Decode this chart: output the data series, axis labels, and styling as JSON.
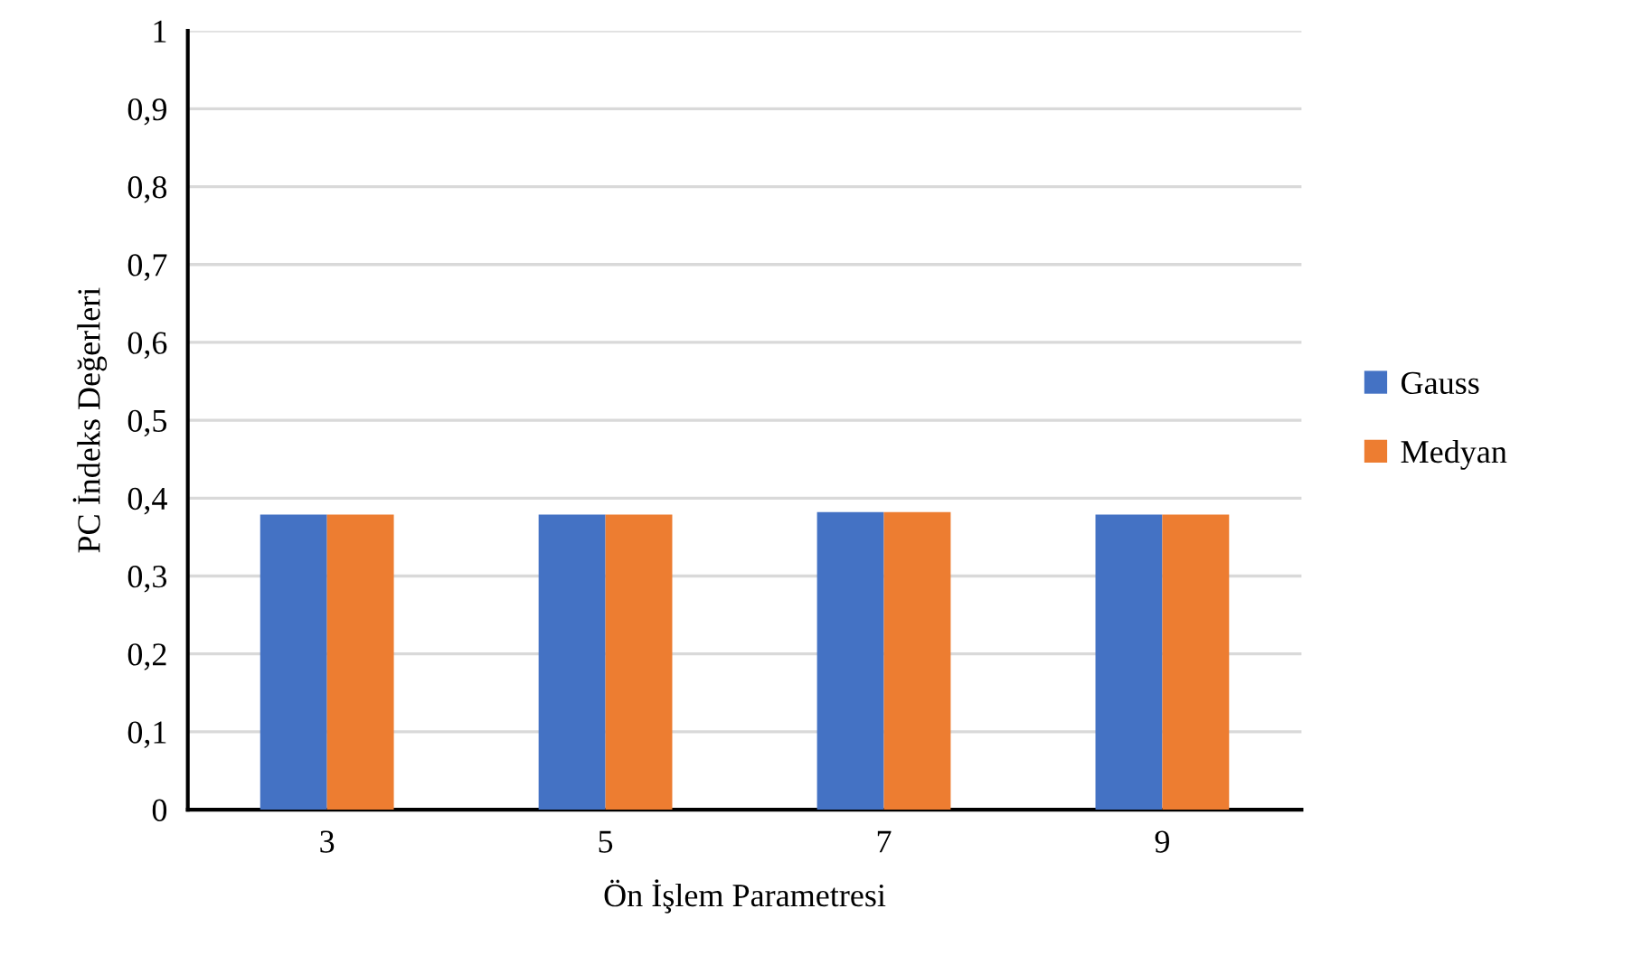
{
  "chart_data": {
    "type": "bar",
    "xlabel": "Ön İşlem Parametresi",
    "ylabel": "PC İndeks Değerleri",
    "categories": [
      "3",
      "5",
      "7",
      "9"
    ],
    "series": [
      {
        "name": "Gauss",
        "color": "#4472c4",
        "values": [
          0.379,
          0.379,
          0.382,
          0.379
        ]
      },
      {
        "name": "Medyan",
        "color": "#ed7d31",
        "values": [
          0.379,
          0.379,
          0.382,
          0.379
        ]
      }
    ],
    "ylim": [
      0,
      1
    ],
    "yticks": [
      0,
      {
        "value": 0.1,
        "label": "0,1"
      },
      {
        "value": 0.2,
        "label": "0,2"
      },
      {
        "value": 0.3,
        "label": "0,3"
      },
      {
        "value": 0.4,
        "label": "0,4"
      },
      {
        "value": 0.5,
        "label": "0,5"
      },
      {
        "value": 0.6,
        "label": "0,6"
      },
      {
        "value": 0.7,
        "label": "0,7"
      },
      {
        "value": 0.8,
        "label": "0,8"
      },
      {
        "value": 0.9,
        "label": "0,9"
      },
      1
    ],
    "grid": "y",
    "legend": "right"
  }
}
